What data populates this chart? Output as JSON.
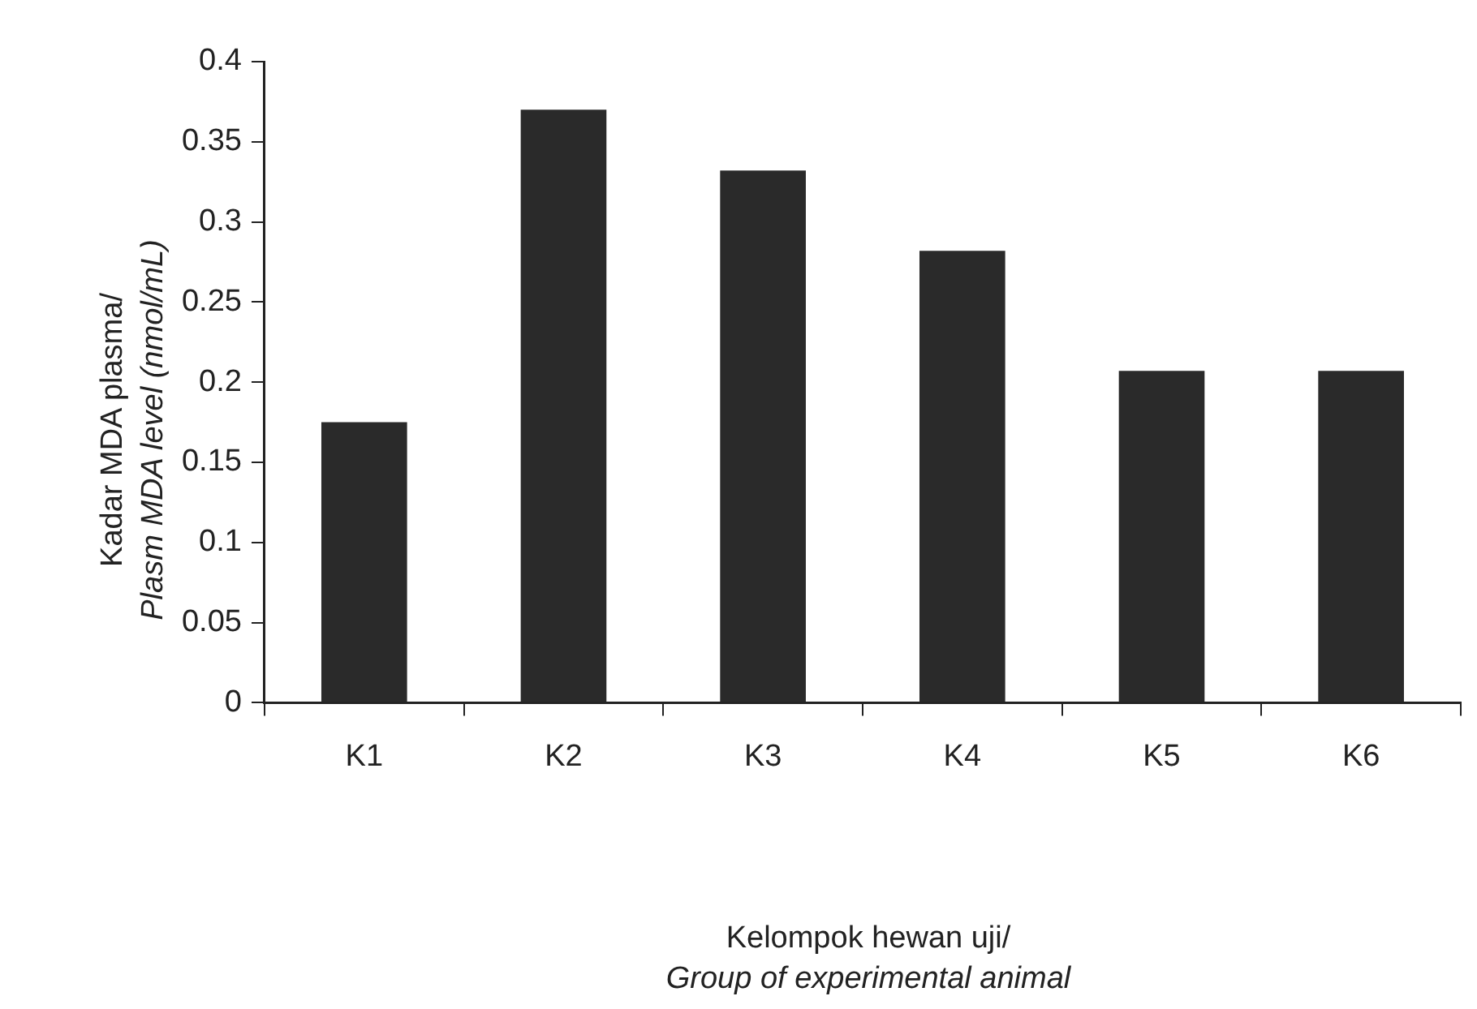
{
  "chart_data": {
    "type": "bar",
    "xlabel": "Kelompok hewan uji/\nGroup of experimental animal",
    "ylabel": "Kadar MDA plasma/\nPlasm MDA level (nmol/mL)",
    "categories": [
      "K1",
      "K2",
      "K3",
      "K4",
      "K5",
      "K6"
    ],
    "values": [
      0.175,
      0.37,
      0.332,
      0.282,
      0.207,
      0.207
    ],
    "color": "#2a2a2a",
    "ylim": [
      0,
      0.4
    ],
    "yticks": [
      0,
      0.05,
      0.1,
      0.15,
      0.2,
      0.25,
      0.3,
      0.35,
      0.4
    ],
    "grid": false,
    "legend": false
  }
}
